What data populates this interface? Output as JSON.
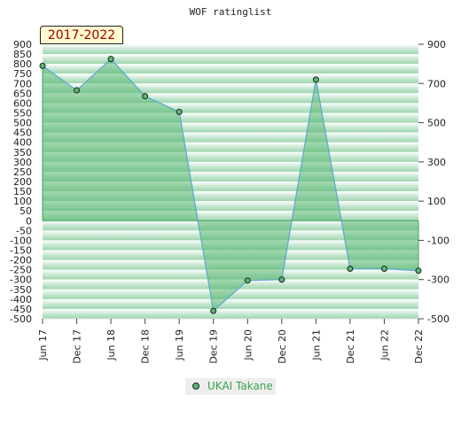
{
  "period_label": "2017-2022",
  "chart_data": {
    "type": "area",
    "title": "WOF ratinglist",
    "categories": [
      "Jun 17",
      "Dec 17",
      "Jun 18",
      "Dec 18",
      "Jun 19",
      "Dec 19",
      "Jun 20",
      "Dec 20",
      "Jun 21",
      "Dec 21",
      "Jun 22",
      "Dec 22"
    ],
    "series": [
      {
        "name": "UKAI Takane",
        "values": [
          790,
          665,
          825,
          635,
          555,
          -460,
          -305,
          -300,
          720,
          -245,
          -245,
          -255
        ]
      }
    ],
    "ylim": [
      -500,
      900
    ],
    "left_ticks": [
      900,
      850,
      800,
      750,
      700,
      650,
      600,
      550,
      500,
      450,
      400,
      350,
      300,
      250,
      200,
      150,
      100,
      50,
      0,
      -50,
      -100,
      -150,
      -200,
      -250,
      -300,
      -350,
      -400,
      -450,
      -500
    ],
    "right_ticks": [
      900,
      700,
      500,
      300,
      100,
      -100,
      -300,
      -500
    ],
    "grid": true,
    "legend_position": "bottom-center",
    "colors": {
      "line": "#5aa6d6",
      "fill": "#5bb873",
      "marker": "#5bb76e",
      "legend_text": "#3aa24e",
      "badge_text": "#a00000"
    }
  }
}
